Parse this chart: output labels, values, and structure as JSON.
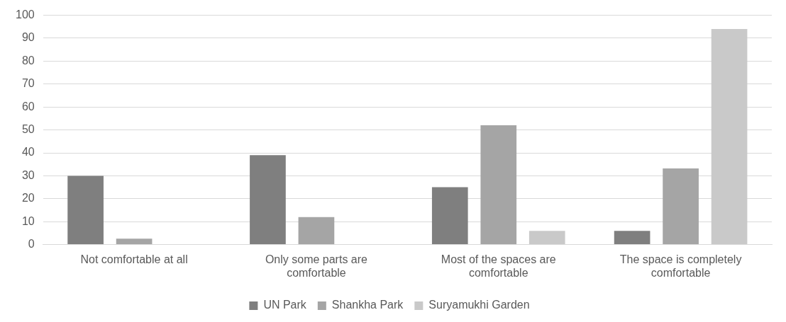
{
  "chart_data": {
    "type": "bar",
    "categories": [
      "Not comfortable at all",
      "Only some parts are comfortable",
      "Most of the spaces are comfortable",
      "The space is completely comfortable"
    ],
    "series": [
      {
        "name": "UN Park",
        "color": "#7f7f7f",
        "values": [
          30,
          39,
          25,
          6
        ]
      },
      {
        "name": "Shankha Park",
        "color": "#a5a5a5",
        "values": [
          2.6,
          12,
          52,
          33.2
        ]
      },
      {
        "name": "Suryamukhi Garden",
        "color": "#c9c9c9",
        "values": [
          0,
          0,
          6,
          94
        ]
      }
    ],
    "ylim": [
      0,
      100
    ],
    "yticks": [
      0,
      10,
      20,
      30,
      40,
      50,
      60,
      70,
      80,
      90,
      100
    ],
    "grid": "y",
    "legend": "bottom"
  }
}
